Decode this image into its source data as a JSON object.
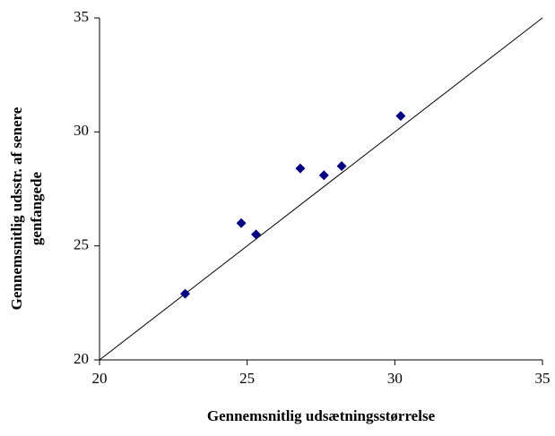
{
  "chart_data": {
    "type": "scatter",
    "xlabel": "Gennemsnitlig udsætningsstørrelse",
    "ylabel": [
      "Gennemsnitlig udsstr. af senere",
      "genfangede"
    ],
    "x": [
      22.9,
      24.8,
      25.3,
      26.8,
      27.6,
      28.2,
      30.2
    ],
    "values": [
      22.9,
      26.0,
      25.5,
      28.4,
      28.1,
      28.5,
      30.7
    ],
    "color": "#000080",
    "xlim": [
      20,
      35
    ],
    "ylim": [
      20,
      35
    ],
    "xticks": [
      20,
      25,
      30,
      35
    ],
    "yticks": [
      20,
      25,
      30,
      35
    ],
    "diagonal": true,
    "grid": false
  }
}
